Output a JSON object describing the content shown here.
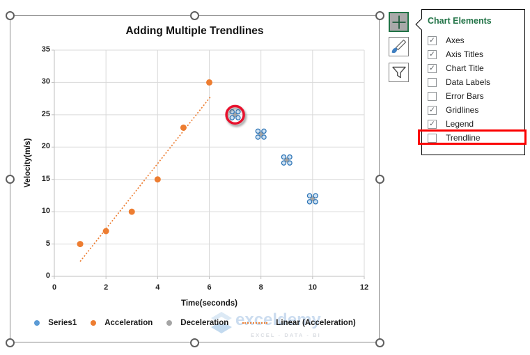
{
  "chart_data": {
    "type": "scatter",
    "title": "Adding Multiple Trendlines",
    "xlabel": "Time(seconds)",
    "ylabel": "Velocity(m/s)",
    "xlim": [
      0,
      12
    ],
    "ylim": [
      0,
      35
    ],
    "xticks": [
      0,
      2,
      4,
      6,
      8,
      10,
      12
    ],
    "yticks": [
      0,
      5,
      10,
      15,
      20,
      25,
      30,
      35
    ],
    "grid": true,
    "legend_position": "bottom",
    "series": [
      {
        "name": "Series1",
        "color": "#5B9BD5",
        "marker": "dot",
        "points": []
      },
      {
        "name": "Acceleration",
        "color": "#ED7D31",
        "marker": "dot",
        "points": [
          [
            1,
            5
          ],
          [
            2,
            7
          ],
          [
            3,
            10
          ],
          [
            4,
            15
          ],
          [
            5,
            23
          ],
          [
            6,
            30
          ]
        ]
      },
      {
        "name": "Deceleration",
        "color": "#A5A5A5",
        "marker": "dot",
        "selected": true,
        "points": [
          [
            7,
            25
          ],
          [
            8,
            22
          ],
          [
            9,
            18
          ],
          [
            10,
            12
          ]
        ]
      },
      {
        "name": "Linear (Acceleration)",
        "color": "#ED7D31",
        "style": "dotted-line",
        "trendline": {
          "x1": 1,
          "y1": 2.3,
          "x2": 6.05,
          "y2": 27.8
        }
      }
    ],
    "highlight": {
      "point": [
        7,
        25
      ],
      "shape": "red-circle"
    }
  },
  "chart_elements_panel": {
    "title": "Chart Elements",
    "items": [
      {
        "label": "Axes",
        "checked": true,
        "highlighted": false
      },
      {
        "label": "Axis Titles",
        "checked": true,
        "highlighted": false
      },
      {
        "label": "Chart Title",
        "checked": true,
        "highlighted": false
      },
      {
        "label": "Data Labels",
        "checked": false,
        "highlighted": false
      },
      {
        "label": "Error Bars",
        "checked": false,
        "highlighted": false
      },
      {
        "label": "Gridlines",
        "checked": true,
        "highlighted": false
      },
      {
        "label": "Legend",
        "checked": true,
        "highlighted": false
      },
      {
        "label": "Trendline",
        "checked": false,
        "highlighted": true
      }
    ],
    "check_glyph": "✓"
  },
  "side_buttons": [
    {
      "name": "chart-elements",
      "icon": "plus-icon",
      "selected": true
    },
    {
      "name": "chart-styles",
      "icon": "paintbrush-icon",
      "selected": false
    },
    {
      "name": "chart-filters",
      "icon": "funnel-icon",
      "selected": false
    }
  ],
  "watermark": {
    "brand": "exceldemy",
    "tagline": "EXCEL - DATA - BI"
  },
  "colors": {
    "excel_green": "#217346",
    "orange": "#ED7D31",
    "blue": "#5B9BD5",
    "gray_series": "#A5A5A5",
    "gridline": "#d9d9d9",
    "axis": "#bfbfbf",
    "selection_ring_stroke": "#2e75b6",
    "selection_ring_fill": "#cfe2f3",
    "highlight_red": "#e8112d"
  }
}
